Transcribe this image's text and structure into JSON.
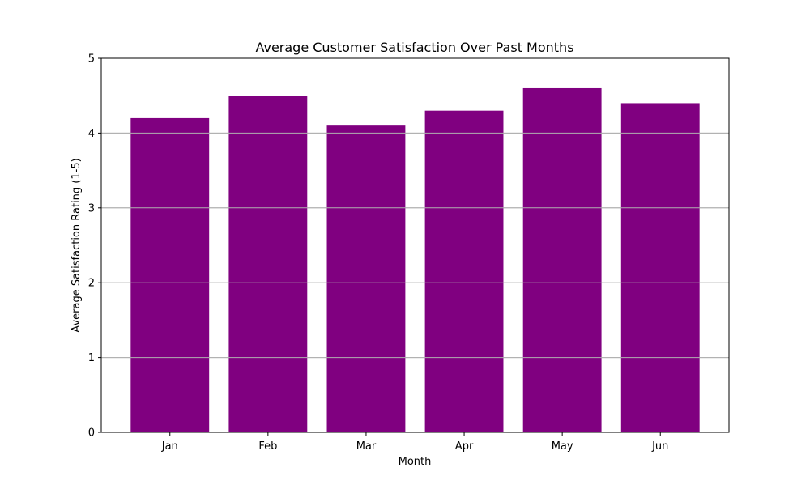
{
  "chart_data": {
    "type": "bar",
    "title": "Average Customer Satisfaction Over Past Months",
    "xlabel": "Month",
    "ylabel": "Average Satisfaction Rating (1-5)",
    "categories": [
      "Jan",
      "Feb",
      "Mar",
      "Apr",
      "May",
      "Jun"
    ],
    "values": [
      4.2,
      4.5,
      4.1,
      4.3,
      4.6,
      4.4
    ],
    "ylim": [
      0,
      5
    ],
    "yticks": [
      0,
      1,
      2,
      3,
      4,
      5
    ],
    "grid": "y",
    "colors": {
      "bar": "#800080",
      "grid": "#b0b0b0",
      "axis": "#000000"
    }
  }
}
